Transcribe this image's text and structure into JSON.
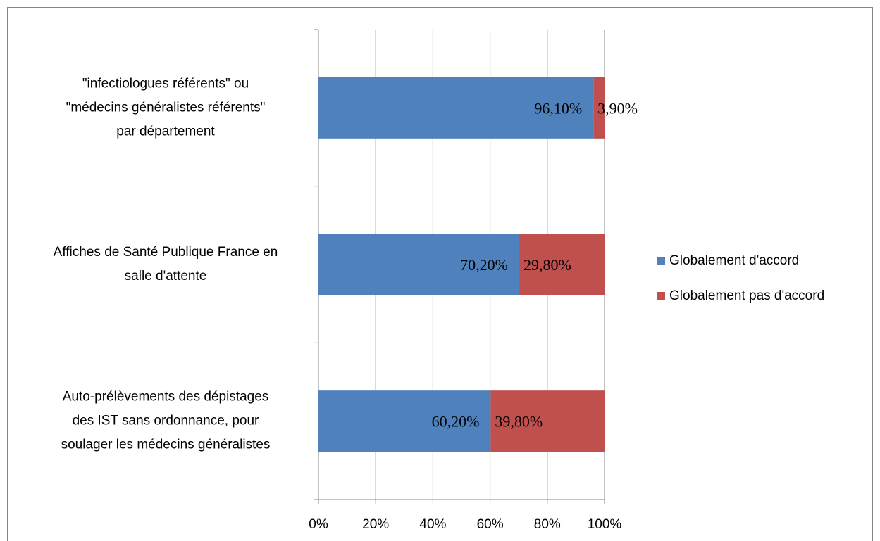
{
  "chart_data": {
    "type": "bar",
    "orientation": "horizontal",
    "stacked": true,
    "categories": [
      [
        "\"infectiologues référents\" ou",
        "\"médecins généralistes référents\"",
        "par département"
      ],
      [
        "Affiches de Santé Publique France en",
        "salle d'attente"
      ],
      [
        "Auto-prélèvements des dépistages",
        "des IST sans ordonnance, pour",
        "soulager les médecins généralistes"
      ]
    ],
    "series": [
      {
        "name": "Globalement d'accord",
        "color": "#4f81bd",
        "values": [
          96.1,
          70.2,
          60.2
        ],
        "value_labels": [
          "96,10%",
          "70,20%",
          "60,20%"
        ]
      },
      {
        "name": "Globalement pas d'accord",
        "color": "#c0504d",
        "values": [
          3.9,
          29.8,
          39.8
        ],
        "value_labels": [
          "3,90%",
          "29,80%",
          "39,80%"
        ]
      }
    ],
    "xlim": [
      0,
      100
    ],
    "xticks": [
      {
        "value": 0,
        "label": "0%"
      },
      {
        "value": 20,
        "label": "20%"
      },
      {
        "value": 40,
        "label": "40%"
      },
      {
        "value": 60,
        "label": "60%"
      },
      {
        "value": 80,
        "label": "80%"
      },
      {
        "value": 100,
        "label": "100%"
      }
    ],
    "grid": true,
    "legend": "right"
  }
}
